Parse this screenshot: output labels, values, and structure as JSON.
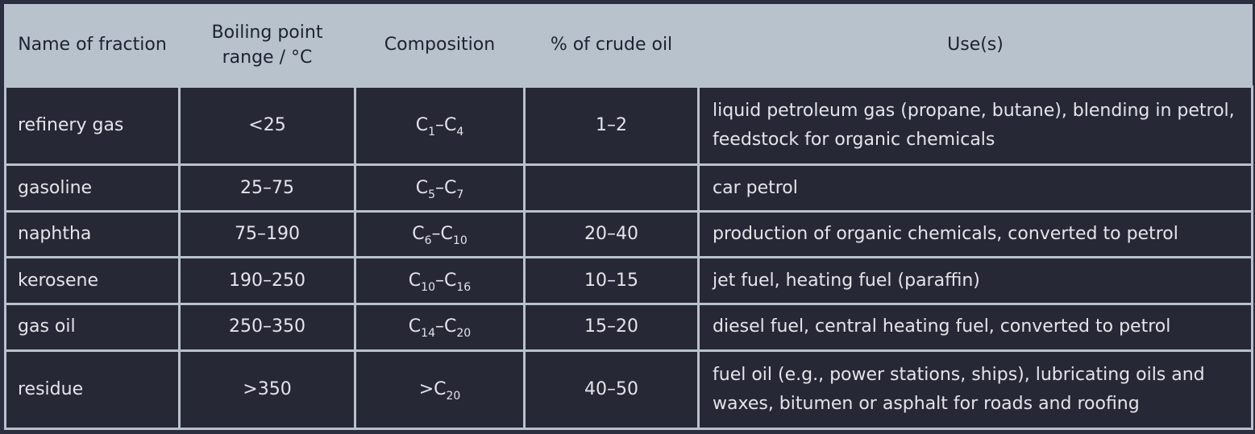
{
  "headers": {
    "name": "Name of fraction",
    "boiling": "Boiling point range / °C",
    "composition": "Composition",
    "percent": "% of crude oil",
    "uses": "Use(s)"
  },
  "rows": [
    {
      "name": "refinery gas",
      "boiling": "<25",
      "comp_a": "C",
      "comp_a_sub": "1",
      "comp_dash": "–",
      "comp_b": "C",
      "comp_b_sub": "4",
      "percent": "1–2",
      "uses": "liquid petroleum gas (propane, butane), blending in petrol, feedstock for organic chemicals"
    },
    {
      "name": "gasoline",
      "boiling": "25–75",
      "comp_a": "C",
      "comp_a_sub": "5",
      "comp_dash": "–",
      "comp_b": "C",
      "comp_b_sub": "7",
      "percent": "",
      "uses": "car petrol"
    },
    {
      "name": "naphtha",
      "boiling": "75–190",
      "comp_a": "C",
      "comp_a_sub": "6",
      "comp_dash": "–",
      "comp_b": "C",
      "comp_b_sub": "10",
      "percent": "20–40",
      "uses": "production of organic chemicals, converted to petrol"
    },
    {
      "name": "kerosene",
      "boiling": "190–250",
      "comp_a": "C",
      "comp_a_sub": "10",
      "comp_dash": "–",
      "comp_b": "C",
      "comp_b_sub": "16",
      "percent": "10–15",
      "uses": "jet fuel, heating fuel (paraffin)"
    },
    {
      "name": "gas oil",
      "boiling": "250–350",
      "comp_a": "C",
      "comp_a_sub": "14",
      "comp_dash": "–",
      "comp_b": "C",
      "comp_b_sub": "20",
      "percent": "15–20",
      "uses": "diesel fuel, central heating fuel, converted to petrol"
    },
    {
      "name": "residue",
      "boiling": ">350",
      "comp_a": ">C",
      "comp_a_sub": "20",
      "comp_dash": "",
      "comp_b": "",
      "comp_b_sub": "",
      "percent": "40–50",
      "uses": "fuel oil (e.g., power stations, ships), lubricating oils and waxes, bitumen or asphalt for roads and roofing"
    }
  ]
}
